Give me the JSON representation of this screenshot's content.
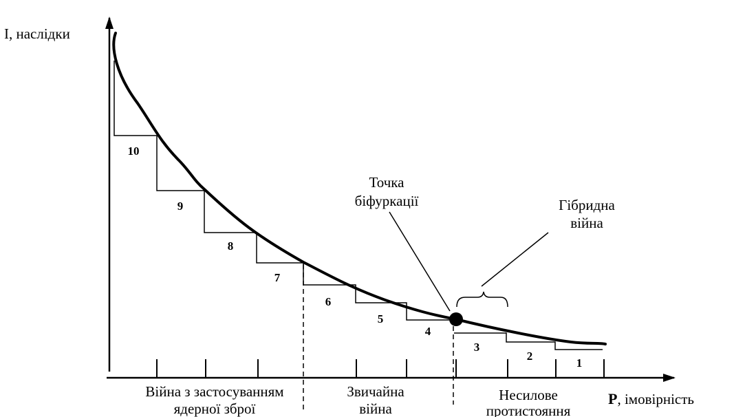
{
  "axes": {
    "y_label": "I, наслідки",
    "x_label_bold": "P",
    "x_label_rest": ", імовірність"
  },
  "curve_note": "monotonically decreasing consequences (I) versus probability (P)",
  "steps": [
    "10",
    "9",
    "8",
    "7",
    "6",
    "5",
    "4",
    "3",
    "2",
    "1"
  ],
  "annotations": {
    "bifurcation": [
      "Точка",
      "біфуркації"
    ],
    "hybrid": [
      "Гібридна",
      "війна"
    ]
  },
  "zones": {
    "nuclear": [
      "Війна з застосуванням",
      "ядерної зброї"
    ],
    "conventional": [
      "Звичайна",
      "війна"
    ],
    "nonforce": [
      "Несилове",
      "протистояння"
    ]
  },
  "colors": {
    "line": "#000000",
    "background": "#ffffff"
  }
}
